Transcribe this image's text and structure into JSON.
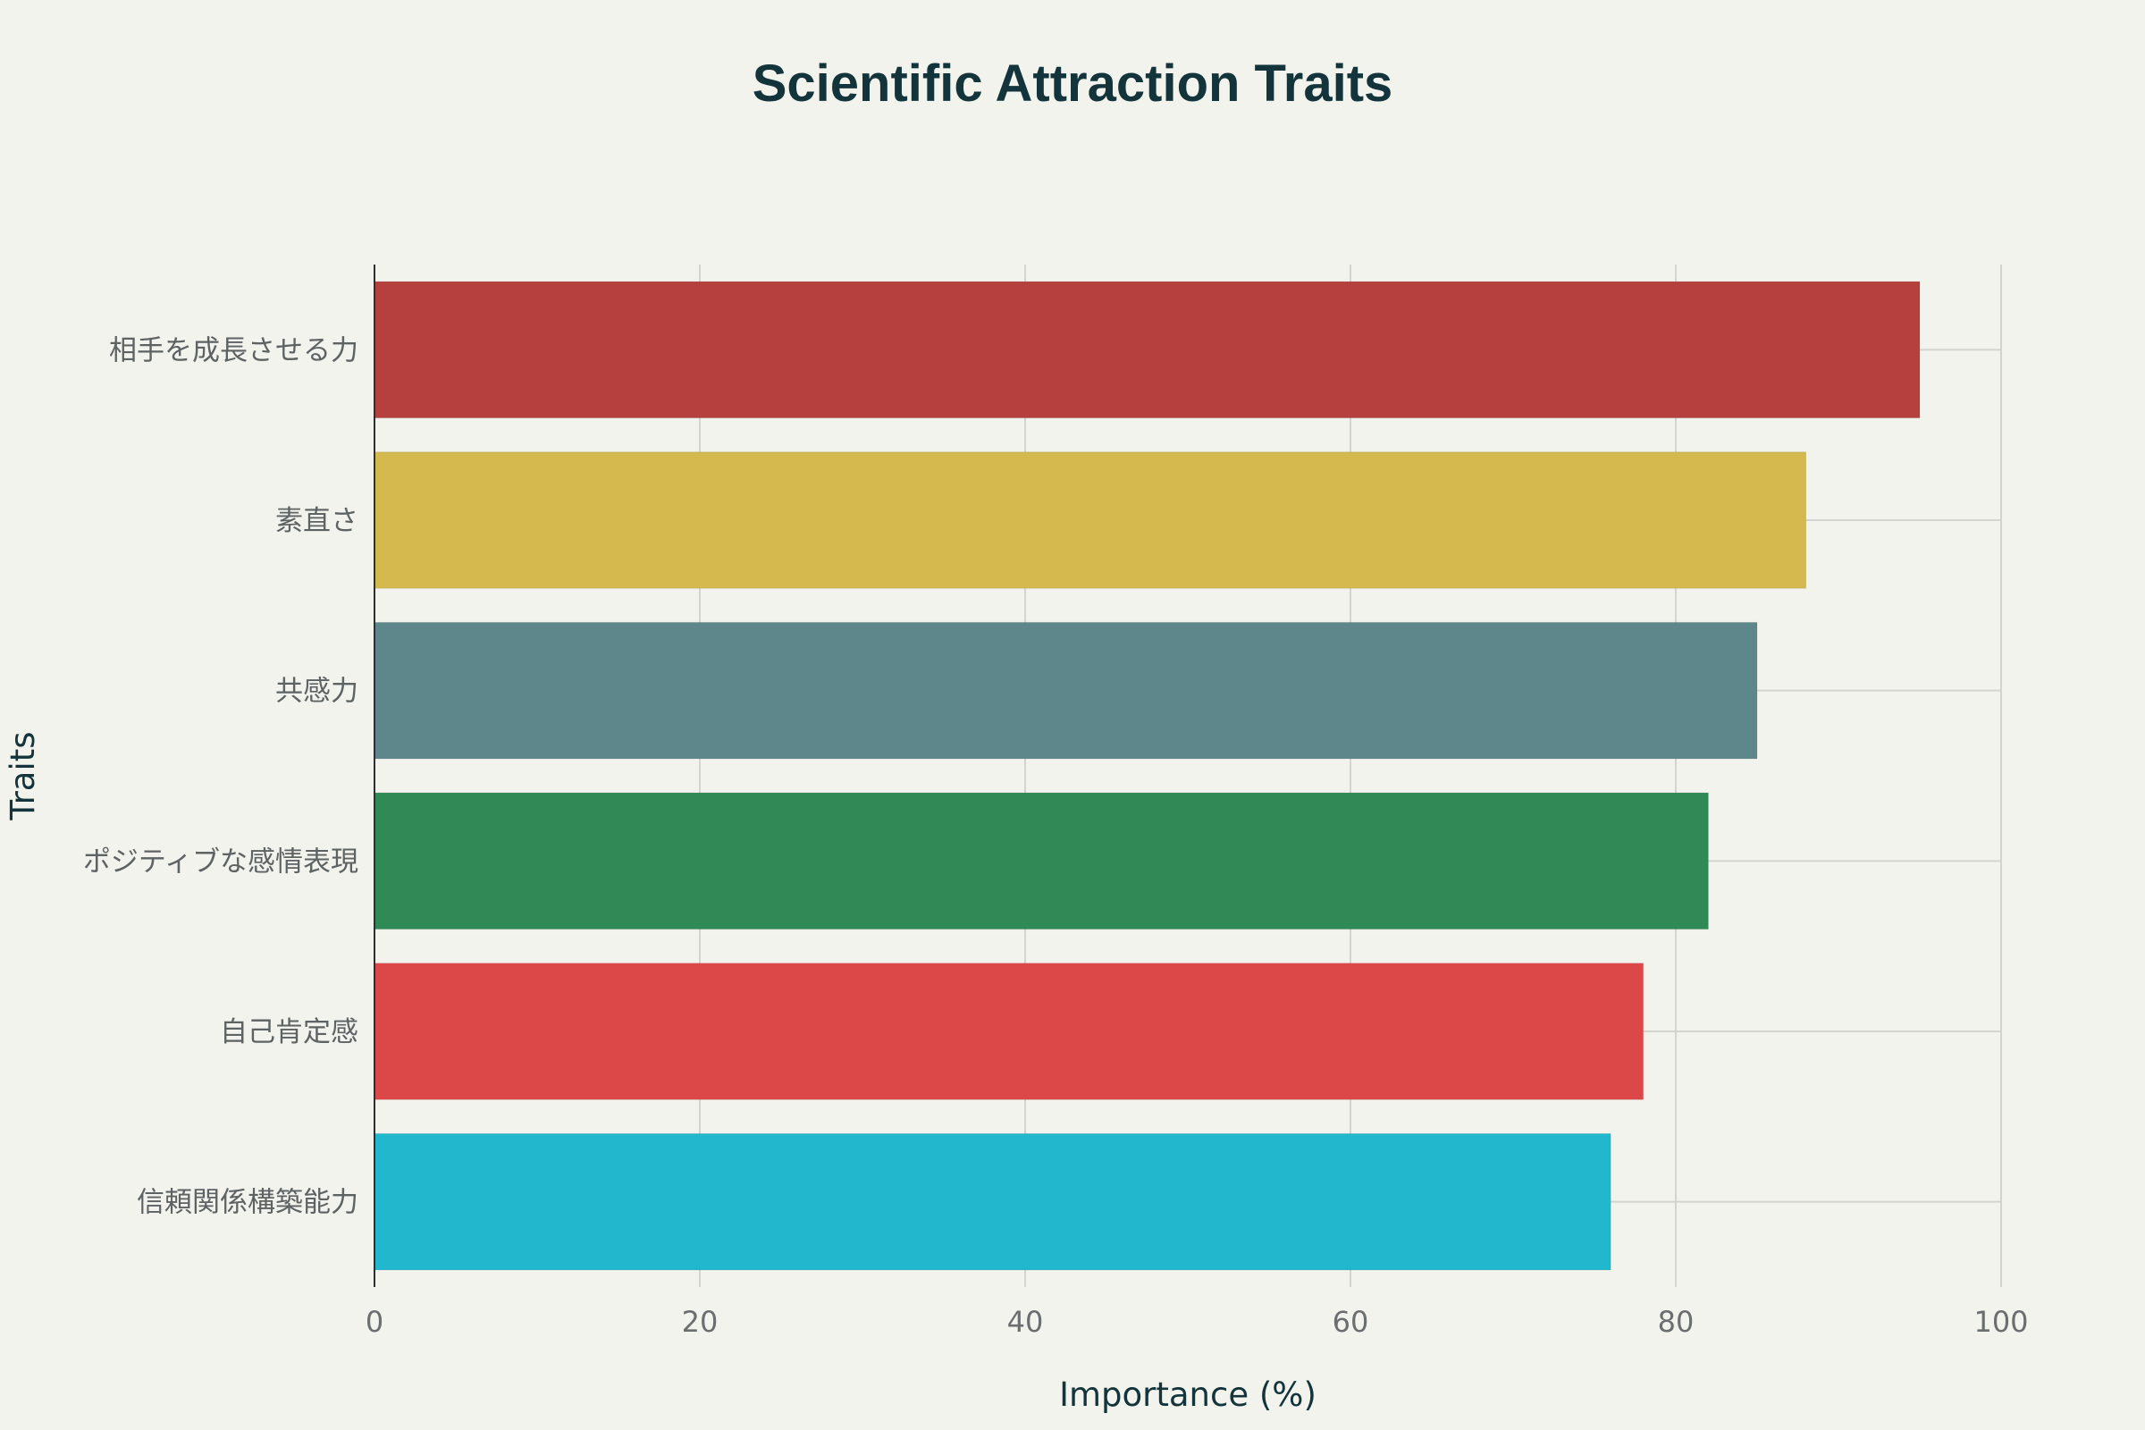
{
  "chart_data": {
    "type": "bar",
    "orientation": "horizontal",
    "title": "Scientific Attraction Traits",
    "xlabel": "Importance (%)",
    "ylabel": "Traits",
    "xlim": [
      0,
      100
    ],
    "x_ticks": [
      0,
      20,
      40,
      60,
      80,
      100
    ],
    "grid": true,
    "legend": "none",
    "categories": [
      "相手を成長させる力",
      "素直さ",
      "共感力",
      "ポジティブな感情表現",
      "自己肯定感",
      "信頼関係構築能力"
    ],
    "values": [
      95,
      88,
      85,
      82,
      78,
      76
    ],
    "colors": [
      "#b5403e",
      "#d3b94e",
      "#5e878c",
      "#2f8a55",
      "#dc4747",
      "#21b7cc"
    ]
  }
}
